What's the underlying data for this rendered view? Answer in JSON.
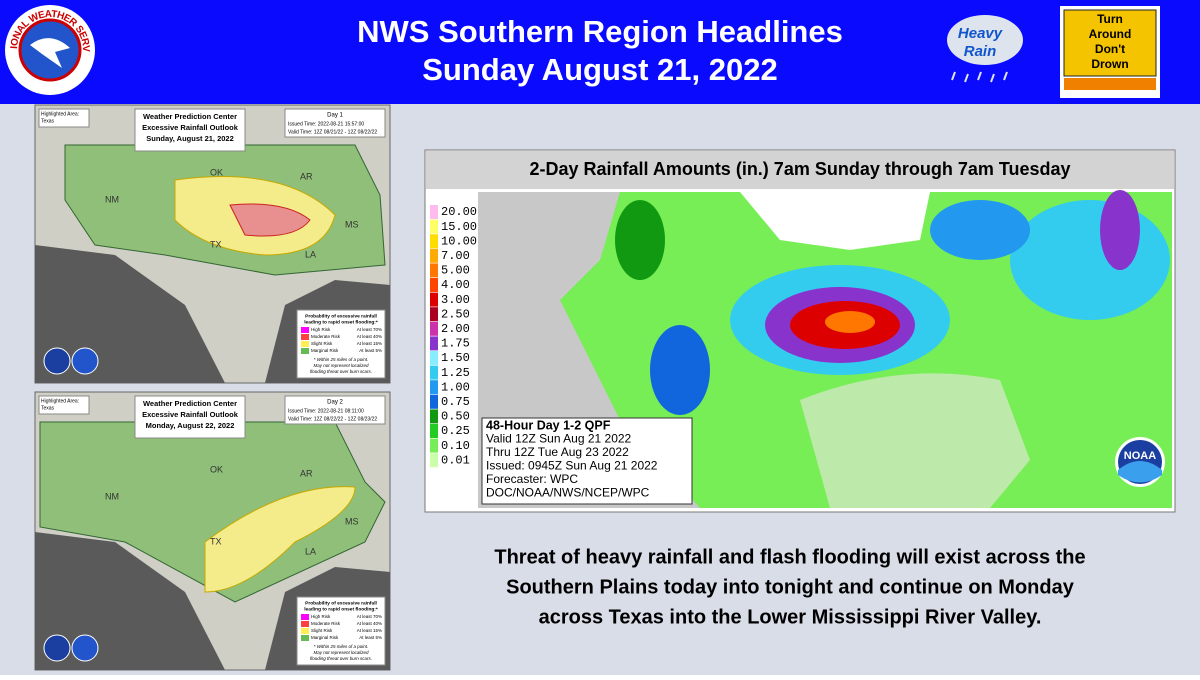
{
  "header": {
    "title": "NWS Southern Region Headlines",
    "date": "Sunday August 21, 2022",
    "logo_text": "NATIONAL WEATHER SERVICE",
    "icon_rain": [
      "Heavy",
      "Rain"
    ],
    "icon_sign": [
      "Turn",
      "Around",
      "Don't",
      "Drown"
    ]
  },
  "outlooks": [
    {
      "title": [
        "Weather Prediction Center",
        "Excessive Rainfall Outlook",
        "Sunday, August 21, 2022"
      ],
      "day": "Day 1",
      "issued": "Issued Time: 2022-08-21 15:57:00",
      "valid": "Valid Time: 12Z 08/21/22 - 12Z 08/22/22",
      "highlight": [
        "Highlighted Area:",
        "Texas"
      ]
    },
    {
      "title": [
        "Weather Prediction Center",
        "Excessive Rainfall Outlook",
        "Monday, August 22, 2022"
      ],
      "day": "Day 2",
      "issued": "Issued Time: 2022-08-21 08:11:00",
      "valid": "Valid Time: 12Z 08/22/22 - 12Z 08/23/22",
      "highlight": [
        "Highlighted Area:",
        "Texas"
      ]
    }
  ],
  "outlook_legend": {
    "heading": [
      "Probability of excessive rainfall",
      "leading to rapid onset flooding:*"
    ],
    "rows": [
      {
        "name": "High Risk",
        "prob": "At least 70%",
        "color": "#ff00ff"
      },
      {
        "name": "Moderate Risk",
        "prob": "At least 40%",
        "color": "#ff4040"
      },
      {
        "name": "Slight Risk",
        "prob": "At least 15%",
        "color": "#ffee55"
      },
      {
        "name": "Marginal Risk",
        "prob": "At least 5%",
        "color": "#66bb55"
      }
    ],
    "note": [
      "* Within 25 miles of a point.",
      "May not represent localized",
      "flooding threat over burn scars."
    ]
  },
  "state_labels": [
    "NM",
    "OK",
    "TX",
    "AR",
    "LA",
    "MS"
  ],
  "qpf": {
    "title": "2-Day Rainfall Amounts (in.) 7am Sunday through 7am Tuesday",
    "scale": [
      {
        "label": "20.00",
        "color": "#ffbbee"
      },
      {
        "label": "15.00",
        "color": "#ffff66"
      },
      {
        "label": "10.00",
        "color": "#ffdd00"
      },
      {
        "label": "7.00",
        "color": "#ffaa00"
      },
      {
        "label": "5.00",
        "color": "#ff7700"
      },
      {
        "label": "4.00",
        "color": "#ff4400"
      },
      {
        "label": "3.00",
        "color": "#dd0000"
      },
      {
        "label": "2.50",
        "color": "#aa0022"
      },
      {
        "label": "2.00",
        "color": "#cc33aa"
      },
      {
        "label": "1.75",
        "color": "#8833cc"
      },
      {
        "label": "1.50",
        "color": "#88eeff"
      },
      {
        "label": "1.25",
        "color": "#33ccee"
      },
      {
        "label": "1.00",
        "color": "#2299ee"
      },
      {
        "label": "0.75",
        "color": "#1166dd"
      },
      {
        "label": "0.50",
        "color": "#119911"
      },
      {
        "label": "0.25",
        "color": "#22cc22"
      },
      {
        "label": "0.10",
        "color": "#77ee55"
      },
      {
        "label": "0.01",
        "color": "#ccffaa"
      }
    ],
    "info": [
      "48-Hour Day 1-2 QPF",
      "Valid 12Z Sun Aug 21 2022",
      "Thru 12Z Tue Aug 23 2022",
      "Issued: 0945Z Sun Aug 21 2022",
      "Forecaster: WPC",
      "DOC/NOAA/NWS/NCEP/WPC"
    ],
    "logo": "NOAA"
  },
  "summary": [
    "Threat of heavy rainfall and flash flooding will exist across the",
    "Southern Plains today into tonight and continue on Monday",
    "across Texas into the Lower Mississippi River Valley."
  ]
}
